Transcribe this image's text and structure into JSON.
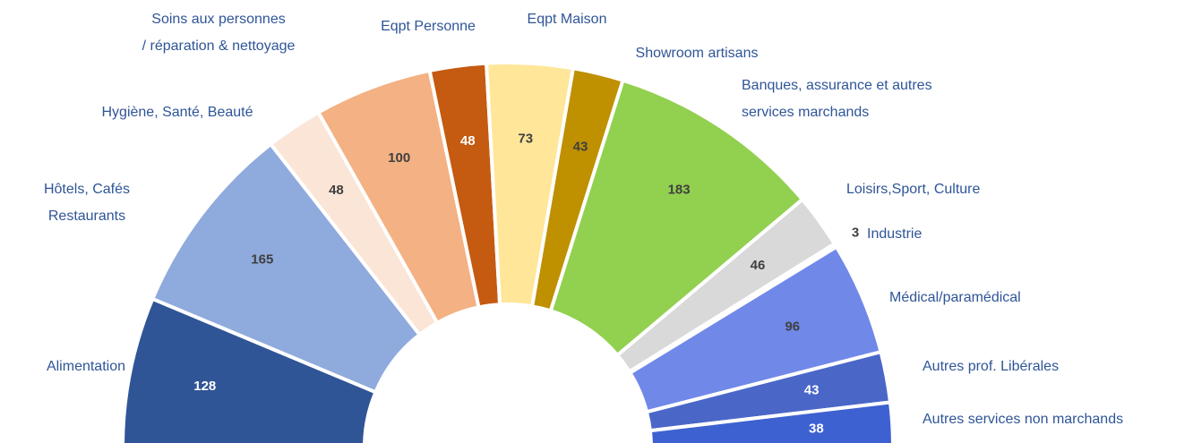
{
  "chart_data": {
    "type": "half-donut",
    "categories": [
      "Alimentation",
      "Hôtels, Cafés\nRestaurants",
      "Hygiène, Santé, Beauté",
      "Soins aux personnes\n/ réparation & nettoyage",
      "Eqpt Personne",
      "Eqpt Maison",
      "Showroom artisans",
      "Banques,  assurance  et  autres\nservices marchands",
      "Loisirs,Sport, Culture",
      "Industrie",
      "Médical/paramédical",
      "Autres prof. Libérales",
      "Autres services non marchands"
    ],
    "values": [
      128,
      165,
      48,
      100,
      48,
      73,
      43,
      183,
      46,
      3,
      96,
      43,
      38
    ],
    "colors": [
      "#2f5597",
      "#8faadc",
      "#fbe5d6",
      "#f4b183",
      "#c55a11",
      "#ffe699",
      "#bf9000",
      "#92d050",
      "#d9d9d9",
      "#e7e6e6",
      "#7088e8",
      "#4a67c8",
      "#3d61d0"
    ]
  }
}
